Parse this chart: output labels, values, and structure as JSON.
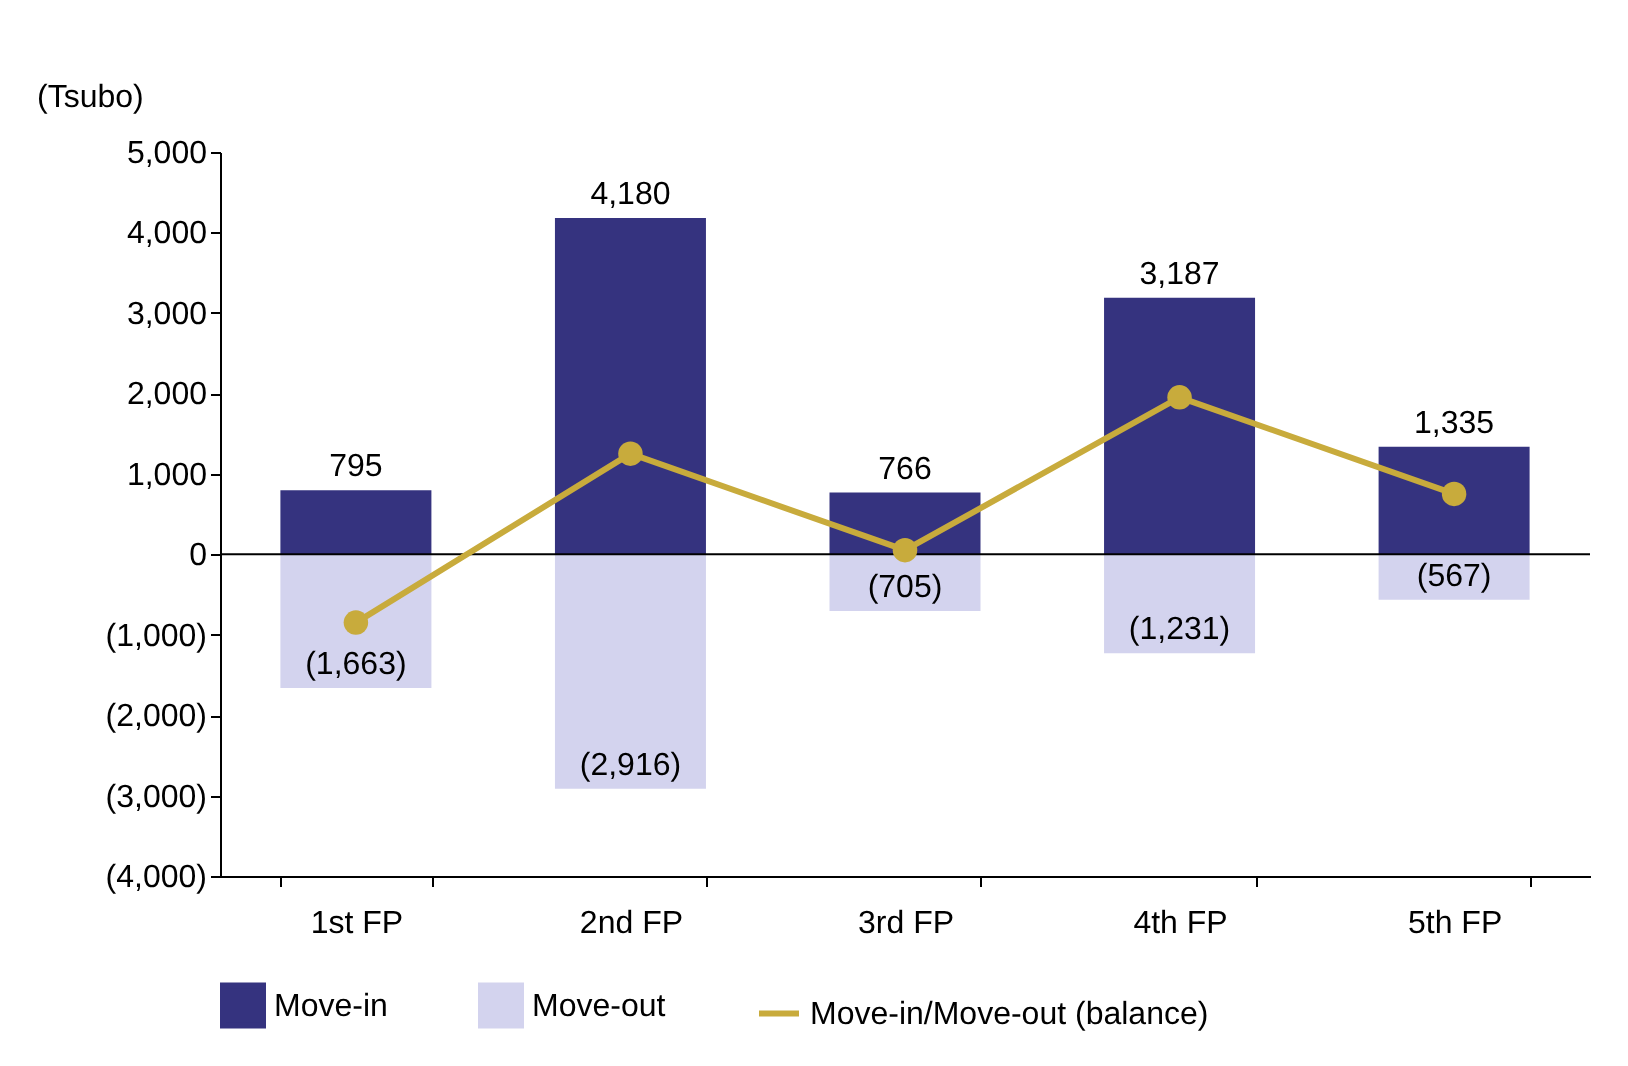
{
  "chart_data": {
    "type": "bar",
    "ylabel": "(Tsubo)",
    "categories": [
      "1st FP",
      "2nd FP",
      "3rd FP",
      "4th FP",
      "5th FP"
    ],
    "stacked": true,
    "series": [
      {
        "name": "Move-in",
        "color": "#35337f",
        "values": [
          795,
          4180,
          766,
          3187,
          1335
        ],
        "value_labels": [
          "795",
          "4,180",
          "766",
          "3,187",
          "1,335"
        ]
      },
      {
        "name": "Move-out",
        "color": "#d3d3ee",
        "values": [
          -1663,
          -2916,
          -705,
          -1231,
          -567
        ],
        "value_labels": [
          "(1,663)",
          "(2,916)",
          "(705)",
          "(1,231)",
          "(567)"
        ]
      },
      {
        "name": "Move-in/Move-out (balance)",
        "type": "line",
        "color": "#c8ab3c",
        "marker": "circle",
        "values": [
          -850,
          1250,
          50,
          1950,
          750
        ]
      }
    ],
    "ylim": [
      -4000,
      5000
    ],
    "yticks": [
      {
        "value": -4000,
        "label": "(4,000)"
      },
      {
        "value": -3000,
        "label": "(3,000)"
      },
      {
        "value": -2000,
        "label": "(2,000)"
      },
      {
        "value": -1000,
        "label": "(1,000)"
      },
      0,
      {
        "value": 1000,
        "label": "1,000"
      },
      {
        "value": 2000,
        "label": "2,000"
      },
      {
        "value": 3000,
        "label": "3,000"
      },
      {
        "value": 4000,
        "label": "4,000"
      },
      {
        "value": 5000,
        "label": "5,000"
      }
    ],
    "ref_lines": [
      {
        "axis": "y",
        "value": 0
      }
    ],
    "grid": false,
    "legend": "bottom"
  }
}
